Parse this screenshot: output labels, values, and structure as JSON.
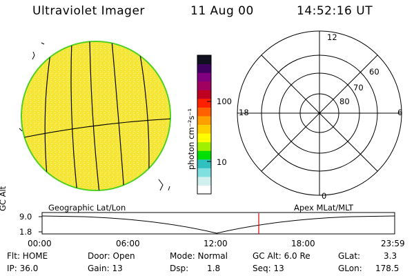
{
  "header": {
    "title": "Ultraviolet Imager",
    "date": "11 Aug 00",
    "time": "14:52:16 UT"
  },
  "colorbar": {
    "units": "photon cm⁻²s⁻¹",
    "ticks": [
      "100",
      "10"
    ],
    "colors": [
      "#ffffff",
      "#d0f0f0",
      "#80e0e0",
      "#30c0c0",
      "#00e000",
      "#a0f000",
      "#ffff00",
      "#ffd000",
      "#ffa000",
      "#ff6000",
      "#ff2000",
      "#c00020",
      "#a00060",
      "#800080",
      "#400060",
      "#101020"
    ]
  },
  "globe_panel": {
    "label": "Geographic Lat/Lon",
    "fill_color": "#f5e636",
    "limb_color": "#50d020"
  },
  "polar_plot": {
    "label": "Apex MLat/MLT",
    "mlt_labels": [
      "12",
      "18",
      "6",
      "0"
    ],
    "lat_labels": [
      "60",
      "70",
      "80"
    ]
  },
  "timeline": {
    "axis_title": "GC Alt",
    "y_ticks": [
      "9.0",
      "1.8"
    ],
    "x_ticks": [
      "00:00",
      "06:00",
      "12:00",
      "18:00",
      "23:59"
    ],
    "current_marker_color": "#e00000"
  },
  "status": {
    "flt": "Flt: HOME",
    "ip": "IP: 36.0",
    "door": "Door: Open",
    "gain": "Gain: 13",
    "mode": "Mode: Normal",
    "dsp": "Dsp:",
    "dsp_value": "1.8",
    "gcalt": "GC Alt: 6.0 Re",
    "seq": "Seq: 13",
    "glat_label": "GLat:",
    "glat_value": "3.3",
    "glon_label": "GLon:",
    "glon_value": "178.5"
  }
}
